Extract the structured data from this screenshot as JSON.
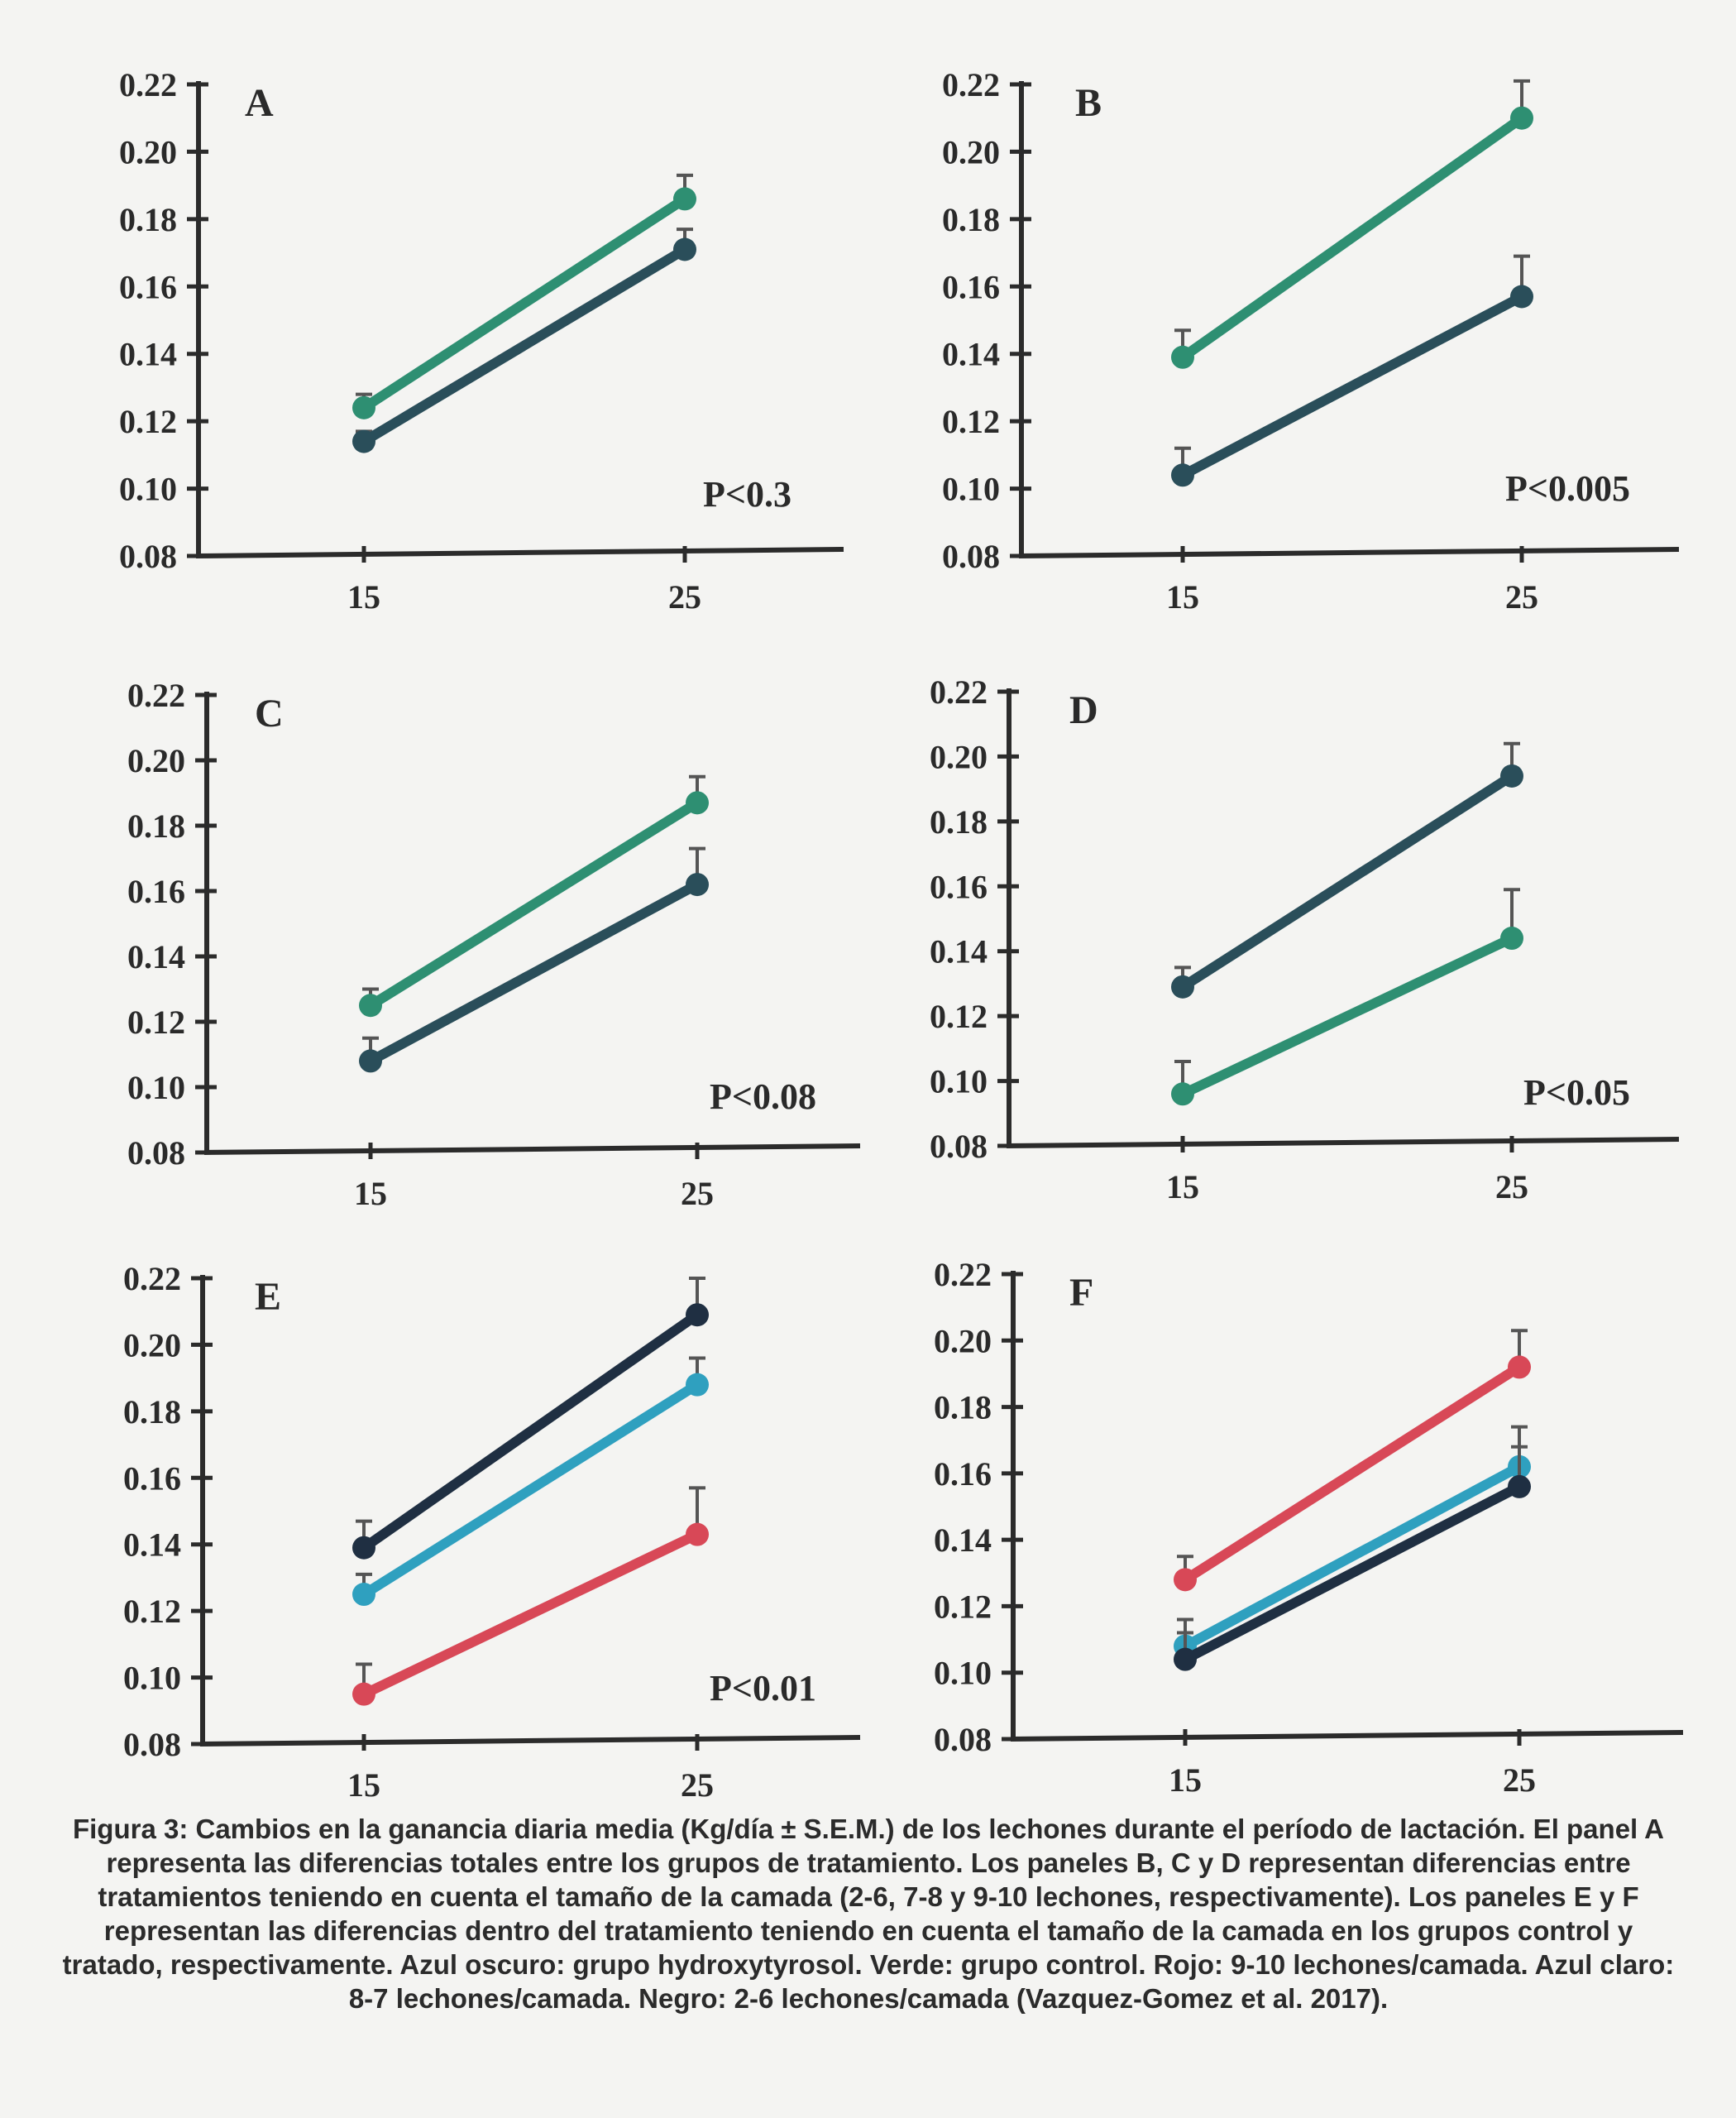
{
  "chart_data": [
    {
      "type": "line",
      "panel": "A",
      "p_value": "P<0.3",
      "ylim": [
        0.08,
        0.22
      ],
      "y_ticks": [
        "0.08",
        "0.10",
        "0.12",
        "0.14",
        "0.16",
        "0.18",
        "0.20",
        "0.22"
      ],
      "categories": [
        "15",
        "25"
      ],
      "series": [
        {
          "color": "#2a4e5a",
          "values": [
            0.114,
            0.171
          ],
          "err": [
            0.003,
            0.006
          ]
        },
        {
          "color": "#2e8f72",
          "values": [
            0.124,
            0.186
          ],
          "err": [
            0.004,
            0.007
          ]
        }
      ]
    },
    {
      "type": "line",
      "panel": "B",
      "p_value": "P<0.005",
      "ylim": [
        0.08,
        0.22
      ],
      "y_ticks": [
        "0.08",
        "0.10",
        "0.12",
        "0.14",
        "0.16",
        "0.18",
        "0.20",
        "0.22"
      ],
      "categories": [
        "15",
        "25"
      ],
      "series": [
        {
          "color": "#2a4e5a",
          "values": [
            0.104,
            0.157
          ],
          "err": [
            0.008,
            0.012
          ]
        },
        {
          "color": "#2e8f72",
          "values": [
            0.139,
            0.21
          ],
          "err": [
            0.008,
            0.011
          ]
        }
      ]
    },
    {
      "type": "line",
      "panel": "C",
      "p_value": "P<0.08",
      "ylim": [
        0.08,
        0.22
      ],
      "y_ticks": [
        "0.08",
        "0.10",
        "0.12",
        "0.14",
        "0.16",
        "0.18",
        "0.20",
        "0.22"
      ],
      "categories": [
        "15",
        "25"
      ],
      "series": [
        {
          "color": "#2a4e5a",
          "values": [
            0.108,
            0.162
          ],
          "err": [
            0.007,
            0.011
          ]
        },
        {
          "color": "#2e8f72",
          "values": [
            0.125,
            0.187
          ],
          "err": [
            0.005,
            0.008
          ]
        }
      ]
    },
    {
      "type": "line",
      "panel": "D",
      "p_value": "P<0.05",
      "ylim": [
        0.08,
        0.22
      ],
      "y_ticks": [
        "0.08",
        "0.10",
        "0.12",
        "0.14",
        "0.16",
        "0.18",
        "0.20",
        "0.22"
      ],
      "categories": [
        "15",
        "25"
      ],
      "series": [
        {
          "color": "#2a4e5a",
          "values": [
            0.129,
            0.194
          ],
          "err": [
            0.006,
            0.01
          ]
        },
        {
          "color": "#2e8f72",
          "values": [
            0.096,
            0.144
          ],
          "err": [
            0.01,
            0.015
          ]
        }
      ]
    },
    {
      "type": "line",
      "panel": "E",
      "p_value": "P<0.01",
      "ylim": [
        0.08,
        0.22
      ],
      "y_ticks": [
        "0.08",
        "0.10",
        "0.12",
        "0.14",
        "0.16",
        "0.18",
        "0.20",
        "0.22"
      ],
      "categories": [
        "15",
        "25"
      ],
      "series": [
        {
          "color": "#1f2f42",
          "values": [
            0.139,
            0.209
          ],
          "err": [
            0.008,
            0.011
          ]
        },
        {
          "color": "#2fa0bf",
          "values": [
            0.125,
            0.188
          ],
          "err": [
            0.006,
            0.008
          ]
        },
        {
          "color": "#d84857",
          "values": [
            0.095,
            0.143
          ],
          "err": [
            0.009,
            0.014
          ]
        }
      ]
    },
    {
      "type": "line",
      "panel": "F",
      "p_value": "",
      "ylim": [
        0.08,
        0.22
      ],
      "y_ticks": [
        "0.08",
        "0.10",
        "0.12",
        "0.14",
        "0.16",
        "0.18",
        "0.20",
        "0.22"
      ],
      "categories": [
        "15",
        "25"
      ],
      "series": [
        {
          "color": "#d84857",
          "values": [
            0.128,
            0.192
          ],
          "err": [
            0.007,
            0.011
          ]
        },
        {
          "color": "#2fa0bf",
          "values": [
            0.108,
            0.162
          ],
          "err": [
            0.008,
            0.012
          ]
        },
        {
          "color": "#1f2f42",
          "values": [
            0.104,
            0.156
          ],
          "err": [
            0.008,
            0.012
          ]
        }
      ]
    }
  ],
  "caption": "Figura 3: Cambios en la ganancia diaria media (Kg/día ± S.E.M.) de los lechones durante el período de lactación. El panel A representa las diferencias totales entre los grupos de tratamiento. Los paneles B, C y D representan diferencias entre tratamientos teniendo en cuenta el tamaño de la camada (2-6, 7-8 y 9-10 lechones, respectivamente). Los paneles E y F representan las diferencias dentro del tratamiento teniendo en cuenta el tamaño de la camada en los grupos control y tratado, respectivamente. Azul oscuro: grupo hydroxytyrosol. Verde: grupo control. Rojo: 9-10 lechones/camada. Azul claro: 8-7 lechones/camada. Negro: 2-6 lechones/camada (Vazquez-Gomez et al. 2017)."
}
